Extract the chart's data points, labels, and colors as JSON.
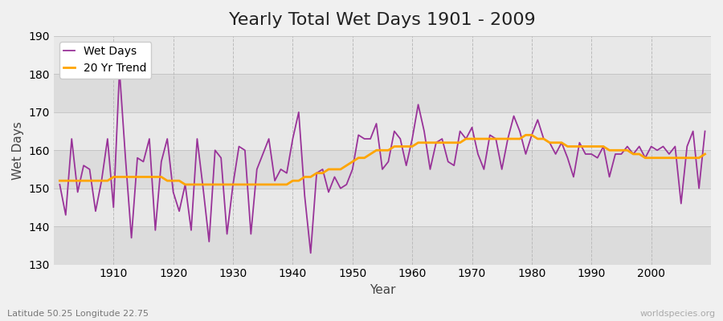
{
  "title": "Yearly Total Wet Days 1901 - 2009",
  "xlabel": "Year",
  "ylabel": "Wet Days",
  "subtitle": "Latitude 50.25 Longitude 22.75",
  "watermark": "worldspecies.org",
  "ylim": [
    130,
    190
  ],
  "yticks": [
    130,
    140,
    150,
    160,
    170,
    180,
    190
  ],
  "xlim": [
    1900,
    2010
  ],
  "xticks": [
    1910,
    1920,
    1930,
    1940,
    1950,
    1960,
    1970,
    1980,
    1990,
    2000
  ],
  "years": [
    1901,
    1902,
    1903,
    1904,
    1905,
    1906,
    1907,
    1908,
    1909,
    1910,
    1911,
    1912,
    1913,
    1914,
    1915,
    1916,
    1917,
    1918,
    1919,
    1920,
    1921,
    1922,
    1923,
    1924,
    1925,
    1926,
    1927,
    1928,
    1929,
    1930,
    1931,
    1932,
    1933,
    1934,
    1935,
    1936,
    1937,
    1938,
    1939,
    1940,
    1941,
    1942,
    1943,
    1944,
    1945,
    1946,
    1947,
    1948,
    1949,
    1950,
    1951,
    1952,
    1953,
    1954,
    1955,
    1956,
    1957,
    1958,
    1959,
    1960,
    1961,
    1962,
    1963,
    1964,
    1965,
    1966,
    1967,
    1968,
    1969,
    1970,
    1971,
    1972,
    1973,
    1974,
    1975,
    1976,
    1977,
    1978,
    1979,
    1980,
    1981,
    1982,
    1983,
    1984,
    1985,
    1986,
    1987,
    1988,
    1989,
    1990,
    1991,
    1992,
    1993,
    1994,
    1995,
    1996,
    1997,
    1998,
    1999,
    2000,
    2001,
    2002,
    2003,
    2004,
    2005,
    2006,
    2007,
    2008,
    2009
  ],
  "wet_days": [
    151,
    143,
    163,
    149,
    156,
    155,
    144,
    152,
    163,
    145,
    181,
    158,
    137,
    158,
    157,
    163,
    139,
    157,
    163,
    149,
    144,
    151,
    139,
    163,
    150,
    136,
    160,
    158,
    138,
    151,
    161,
    160,
    138,
    155,
    159,
    163,
    152,
    155,
    154,
    163,
    170,
    148,
    133,
    154,
    155,
    149,
    153,
    150,
    151,
    155,
    164,
    163,
    163,
    167,
    155,
    157,
    165,
    163,
    156,
    163,
    172,
    165,
    155,
    162,
    163,
    157,
    156,
    165,
    163,
    166,
    159,
    155,
    164,
    163,
    155,
    163,
    169,
    165,
    159,
    164,
    168,
    163,
    162,
    159,
    162,
    158,
    153,
    162,
    159,
    159,
    158,
    161,
    153,
    159,
    159,
    161,
    159,
    161,
    158,
    161,
    160,
    161,
    159,
    161,
    146,
    161,
    165,
    150,
    165
  ],
  "trend": [
    152,
    152,
    152,
    152,
    152,
    152,
    152,
    152,
    152,
    153,
    153,
    153,
    153,
    153,
    153,
    153,
    153,
    153,
    152,
    152,
    152,
    151,
    151,
    151,
    151,
    151,
    151,
    151,
    151,
    151,
    151,
    151,
    151,
    151,
    151,
    151,
    151,
    151,
    151,
    152,
    152,
    153,
    153,
    154,
    154,
    155,
    155,
    155,
    156,
    157,
    158,
    158,
    159,
    160,
    160,
    160,
    161,
    161,
    161,
    161,
    162,
    162,
    162,
    162,
    162,
    162,
    162,
    162,
    163,
    163,
    163,
    163,
    163,
    163,
    163,
    163,
    163,
    163,
    164,
    164,
    163,
    163,
    162,
    162,
    162,
    161,
    161,
    161,
    161,
    161,
    161,
    161,
    160,
    160,
    160,
    160,
    159,
    159,
    158,
    158,
    158,
    158,
    158,
    158,
    158,
    158,
    158,
    158,
    159
  ],
  "wet_days_color": "#993399",
  "trend_color": "#FFA500",
  "band_colors": [
    "#dcdcdc",
    "#e8e8e8"
  ],
  "figure_bg": "#f0f0f0",
  "grid_color_vertical": "#cccccc",
  "title_fontsize": 16,
  "label_fontsize": 11,
  "tick_fontsize": 10,
  "legend_fontsize": 10
}
